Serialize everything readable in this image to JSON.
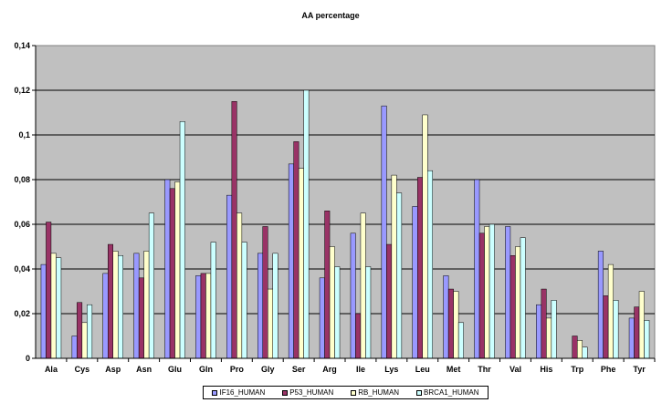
{
  "chart_data": {
    "type": "bar",
    "title": "AA percentage",
    "xlabel": "",
    "ylabel": "",
    "ylim": [
      0,
      0.14
    ],
    "yticks": [
      "0",
      "0,02",
      "0,04",
      "0,06",
      "0,08",
      "0,1",
      "0,12",
      "0,14"
    ],
    "grid": true,
    "legend_position": "bottom",
    "categories": [
      "Ala",
      "Cys",
      "Asp",
      "Asn",
      "Glu",
      "Gln",
      "Pro",
      "Gly",
      "Ser",
      "Arg",
      "Ile",
      "Lys",
      "Leu",
      "Met",
      "Thr",
      "Val",
      "His",
      "Trp",
      "Phe",
      "Tyr"
    ],
    "series": [
      {
        "name": "IF16_HUMAN",
        "color": "#9999ff",
        "values": [
          0.042,
          0.01,
          0.038,
          0.047,
          0.08,
          0.037,
          0.073,
          0.047,
          0.087,
          0.036,
          0.056,
          0.113,
          0.068,
          0.037,
          0.08,
          0.059,
          0.024,
          0.0,
          0.048,
          0.018
        ]
      },
      {
        "name": "P53_HUMAN",
        "color": "#993366",
        "values": [
          0.061,
          0.025,
          0.051,
          0.036,
          0.076,
          0.038,
          0.115,
          0.059,
          0.097,
          0.066,
          0.02,
          0.051,
          0.081,
          0.031,
          0.056,
          0.046,
          0.031,
          0.01,
          0.028,
          0.023
        ]
      },
      {
        "name": "RB_HUMAN",
        "color": "#ffffcc",
        "values": [
          0.047,
          0.016,
          0.048,
          0.048,
          0.079,
          0.038,
          0.065,
          0.031,
          0.085,
          0.05,
          0.065,
          0.082,
          0.109,
          0.03,
          0.059,
          0.05,
          0.018,
          0.008,
          0.042,
          0.03
        ]
      },
      {
        "name": "BRCA1_HUMAN",
        "color": "#ccffff",
        "values": [
          0.045,
          0.024,
          0.046,
          0.065,
          0.106,
          0.052,
          0.052,
          0.047,
          0.12,
          0.041,
          0.041,
          0.074,
          0.084,
          0.016,
          0.06,
          0.054,
          0.026,
          0.005,
          0.026,
          0.017
        ]
      }
    ]
  }
}
